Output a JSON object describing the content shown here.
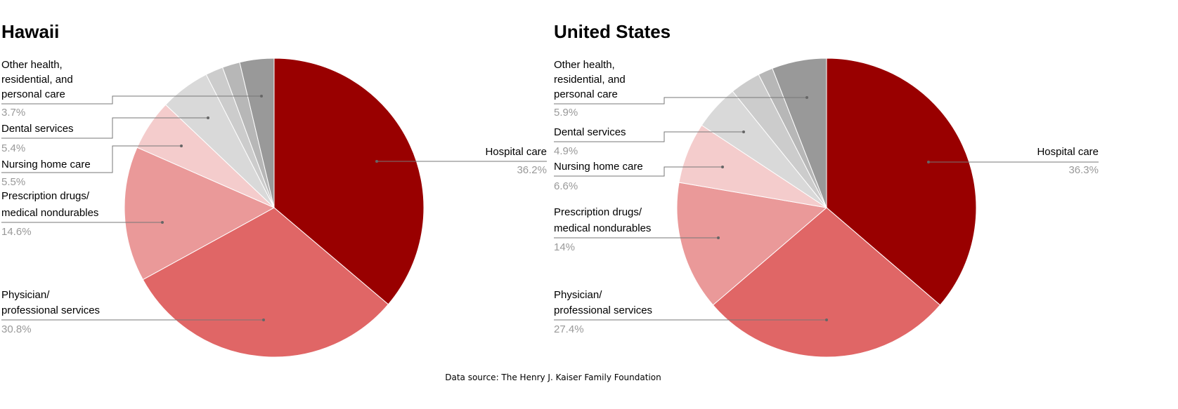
{
  "chart_data": [
    {
      "type": "pie",
      "title": "Hawaii",
      "slices": [
        {
          "label": [
            "Hospital care"
          ],
          "value": 36.2,
          "display": "36.2%",
          "color": "#990000"
        },
        {
          "label": [
            "Physician/",
            "professional services"
          ],
          "value": 30.8,
          "display": "30.8%",
          "color": "#e06666"
        },
        {
          "label": [
            "Prescription drugs/",
            "medical nondurables"
          ],
          "value": 14.6,
          "display": "14.6%",
          "color": "#ea9999"
        },
        {
          "label": [
            "Nursing home care"
          ],
          "value": 5.5,
          "display": "5.5%",
          "color": "#f4cccc"
        },
        {
          "label": [
            "Dental services"
          ],
          "value": 5.4,
          "display": "5.4%",
          "color": "#d9d9d9"
        },
        {
          "value": 1.9,
          "color": "#cccccc"
        },
        {
          "value": 1.9,
          "color": "#b7b7b7"
        },
        {
          "label": [
            "Other health,",
            "residential, and",
            "personal care"
          ],
          "value": 3.7,
          "display": "3.7%",
          "color": "#999999"
        }
      ]
    },
    {
      "type": "pie",
      "title": "United States",
      "slices": [
        {
          "label": [
            "Hospital care"
          ],
          "value": 36.3,
          "display": "36.3%",
          "color": "#990000"
        },
        {
          "label": [
            "Physician/",
            "professional services"
          ],
          "value": 27.4,
          "display": "27.4%",
          "color": "#e06666"
        },
        {
          "label": [
            "Prescription drugs/",
            "medical nondurables"
          ],
          "value": 14,
          "display": "14%",
          "color": "#ea9999"
        },
        {
          "label": [
            "Nursing home care"
          ],
          "value": 6.6,
          "display": "6.6%",
          "color": "#f4cccc"
        },
        {
          "label": [
            "Dental services"
          ],
          "value": 4.9,
          "display": "4.9%",
          "color": "#d9d9d9"
        },
        {
          "value": 3.3,
          "color": "#cccccc"
        },
        {
          "value": 1.6,
          "color": "#b7b7b7"
        },
        {
          "label": [
            "Other health,",
            "residential, and",
            "personal care"
          ],
          "value": 5.9,
          "display": "5.9%",
          "color": "#999999"
        }
      ]
    }
  ],
  "footer": "Data source: The Henry J. Kaiser Family Foundation"
}
